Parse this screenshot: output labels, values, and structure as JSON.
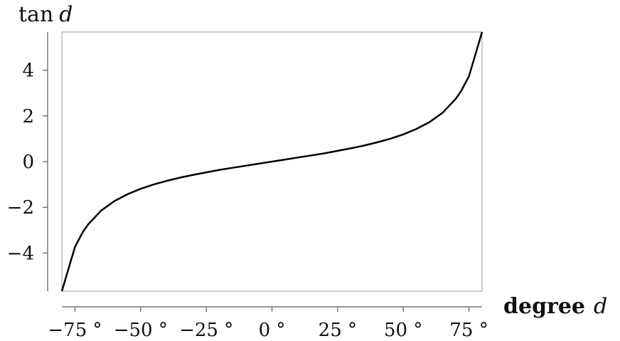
{
  "chart_data": {
    "type": "line",
    "title": "",
    "xlabel": "degree",
    "xlabel_var": "d",
    "ylabel_fn": "tan",
    "ylabel_var": "d",
    "xlim": [
      -80,
      80
    ],
    "ylim": [
      -5.67,
      5.67
    ],
    "x_ticks": [
      -75,
      -50,
      -25,
      0,
      25,
      50,
      75
    ],
    "x_tick_labels": [
      "−75 °",
      "−50 °",
      "−25 °",
      "0 °",
      "25 °",
      "50 °",
      "75 °"
    ],
    "y_ticks": [
      -4,
      -2,
      0,
      2,
      4
    ],
    "y_tick_labels": [
      "−4",
      "−2",
      "0",
      "2",
      "4"
    ],
    "grid": false,
    "legend": "none",
    "series": [
      {
        "x": [
          -80,
          -75,
          -72,
          -70,
          -65,
          -60,
          -55,
          -50,
          -45,
          -40,
          -35,
          -30,
          -25,
          -20,
          -15,
          -10,
          -5,
          0,
          5,
          10,
          15,
          20,
          25,
          30,
          35,
          40,
          45,
          50,
          55,
          60,
          65,
          70,
          72,
          75,
          80
        ],
        "y": [
          -5.67,
          -3.73,
          -3.08,
          -2.75,
          -2.14,
          -1.73,
          -1.43,
          -1.19,
          -1.0,
          -0.84,
          -0.7,
          -0.58,
          -0.47,
          -0.36,
          -0.27,
          -0.18,
          -0.09,
          0,
          0.09,
          0.18,
          0.27,
          0.36,
          0.47,
          0.58,
          0.7,
          0.84,
          1.0,
          1.19,
          1.43,
          1.73,
          2.14,
          2.75,
          3.08,
          3.73,
          5.67
        ]
      }
    ],
    "colors": {
      "line": "#000000",
      "frame": "#bbbbbb",
      "axis": "#777777"
    }
  }
}
